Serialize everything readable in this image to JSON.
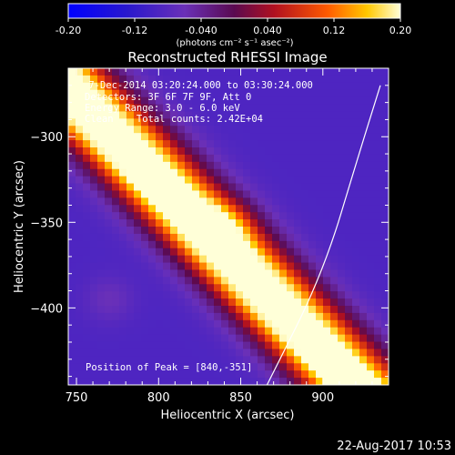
{
  "chart_data": {
    "type": "heatmap",
    "title": "Reconstructed RHESSI Image",
    "xlabel": "Heliocentric X (arcsec)",
    "ylabel": "Heliocentric Y (arcsec)",
    "xlim": [
      745,
      940
    ],
    "ylim": [
      -445,
      -260
    ],
    "x_ticks": [
      750,
      800,
      850,
      900
    ],
    "y_ticks": [
      -300,
      -350,
      -400
    ],
    "colorbar": {
      "range": [
        -0.2,
        0.2
      ],
      "ticks": [
        "-0.20",
        "-0.12",
        "-0.040",
        "0.040",
        "0.12",
        "0.20"
      ],
      "label": "(photons cm⁻² s⁻¹ asec⁻²)",
      "colormap": "blue-white-red (IDL color table 5 style)"
    },
    "info_lines": [
      " 7-Dec-2014 03:20:24.000 to 03:30:24.000",
      "Detectors: 3F 6F 7F 9F, Att 0",
      "Energy Range: 3.0 - 6.0 keV",
      "Clean    Total counts: 2.42E+04"
    ],
    "peak_label": "Position of Peak = [840,-351]",
    "peak": {
      "x": 840,
      "y": -351
    },
    "limb_curve": [
      [
        866,
        -445
      ],
      [
        900,
        -380
      ],
      [
        922,
        -310
      ],
      [
        935,
        -270
      ]
    ],
    "timestamp": "22-Aug-2017 10:53",
    "ridges": [
      {
        "x": 820,
        "y": -352,
        "cx": -0.93,
        "cy": 0.92,
        "spread": 14,
        "amp": 0.18
      },
      {
        "x": 900,
        "y": -430,
        "cx": -0.93,
        "cy": 0.92,
        "spread": 13,
        "amp": 0.13
      },
      {
        "x": 770,
        "y": -280,
        "cx": -0.93,
        "cy": 0.92,
        "spread": 13,
        "amp": 0.12
      }
    ],
    "blobs": [
      {
        "x": 840,
        "y": -351,
        "sx": 14,
        "sy": 10,
        "amp": 0.06
      },
      {
        "x": 770,
        "y": -395,
        "sx": 10,
        "sy": 9,
        "amp": 0.03
      }
    ],
    "baseline": -0.09
  },
  "colors": {
    "background": "#000000",
    "text": "#ffffff",
    "limb": "#ffffff"
  }
}
